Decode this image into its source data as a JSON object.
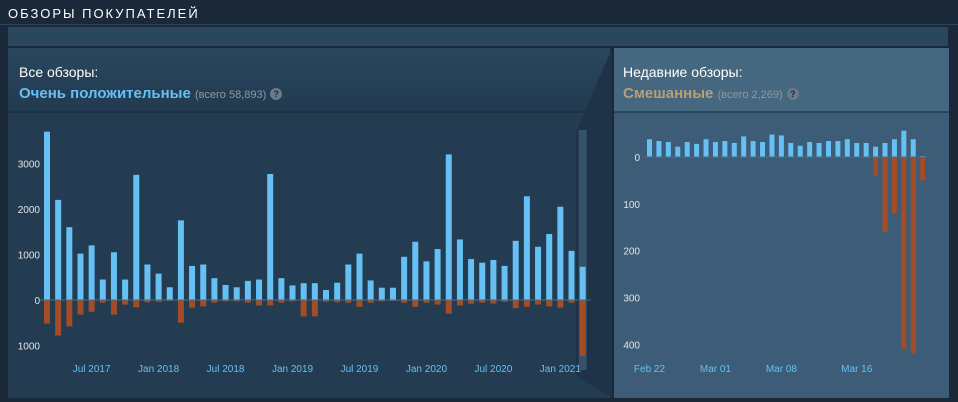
{
  "section_title": "ОБЗОРЫ ПОКУПАТЕЛЕЙ",
  "overall": {
    "title": "Все обзоры:",
    "summary": "Очень положительные",
    "total": "(всего 58,893)",
    "help": "?"
  },
  "recent": {
    "title": "Недавние обзоры:",
    "summary": "Смешанные",
    "total": "(всего 2,269)",
    "help": "?"
  },
  "colors": {
    "positive": "#66c0f4",
    "negative": "#a34c25",
    "positive_text": "#66c0f4",
    "mixed_text": "#b9a074"
  },
  "chart_data": [
    {
      "type": "bar",
      "title": "Все обзоры",
      "ylim": [
        -1200,
        3700
      ],
      "yticks": [
        3000,
        2000,
        1000,
        0,
        -1000
      ],
      "ytick_labels": [
        "3000",
        "2000",
        "1000",
        "0",
        "1000"
      ],
      "xtick_labels": [
        "Jul 2017",
        "Jan 2018",
        "Jul 2018",
        "Jan 2019",
        "Jul 2019",
        "Jan 2020",
        "Jul 2020",
        "Jan 2021"
      ],
      "xtick_index": [
        4,
        10,
        16,
        22,
        28,
        34,
        40,
        46
      ],
      "series": [
        {
          "name": "positive",
          "values": [
            3700,
            2200,
            1600,
            1020,
            1200,
            450,
            1050,
            450,
            2750,
            780,
            580,
            280,
            1750,
            750,
            780,
            480,
            330,
            280,
            420,
            450,
            2770,
            480,
            320,
            370,
            370,
            220,
            380,
            780,
            1020,
            430,
            270,
            270,
            950,
            1280,
            850,
            1120,
            3200,
            1330,
            900,
            820,
            880,
            750,
            1300,
            2280,
            1170,
            1450,
            2050,
            1080,
            730
          ]
        },
        {
          "name": "negative",
          "values": [
            -520,
            -780,
            -580,
            -320,
            -260,
            -60,
            -320,
            -100,
            -160,
            -50,
            -40,
            -20,
            -500,
            -170,
            -140,
            -60,
            -30,
            -30,
            -60,
            -120,
            -120,
            -60,
            -30,
            -360,
            -360,
            -40,
            -50,
            -60,
            -150,
            -60,
            -30,
            -20,
            -60,
            -150,
            -60,
            -100,
            -300,
            -120,
            -80,
            -60,
            -80,
            -40,
            -180,
            -150,
            -100,
            -140,
            -170,
            -60,
            -1230
          ]
        }
      ]
    },
    {
      "type": "bar",
      "title": "Недавние обзоры",
      "ylim": [
        -430,
        60
      ],
      "yticks": [
        0,
        -100,
        -200,
        -300,
        -400
      ],
      "ytick_labels": [
        "0",
        "100",
        "200",
        "300",
        "400"
      ],
      "xtick_labels": [
        "Feb 22",
        "Mar 01",
        "Mar 08",
        "Mar 16"
      ],
      "xtick_index": [
        0,
        7,
        14,
        22
      ],
      "series": [
        {
          "name": "positive",
          "values": [
            38,
            34,
            32,
            22,
            32,
            28,
            38,
            32,
            34,
            30,
            44,
            34,
            32,
            48,
            46,
            30,
            24,
            32,
            30,
            34,
            34,
            38,
            30,
            30,
            22,
            30,
            38,
            56,
            38,
            2
          ]
        },
        {
          "name": "negative",
          "values": [
            0,
            -2,
            -2,
            0,
            0,
            -2,
            0,
            -2,
            -2,
            0,
            -2,
            0,
            -2,
            0,
            -2,
            -2,
            0,
            0,
            -2,
            -2,
            0,
            0,
            -2,
            -2,
            -40,
            -160,
            -120,
            -410,
            -420,
            -50
          ]
        }
      ]
    }
  ]
}
